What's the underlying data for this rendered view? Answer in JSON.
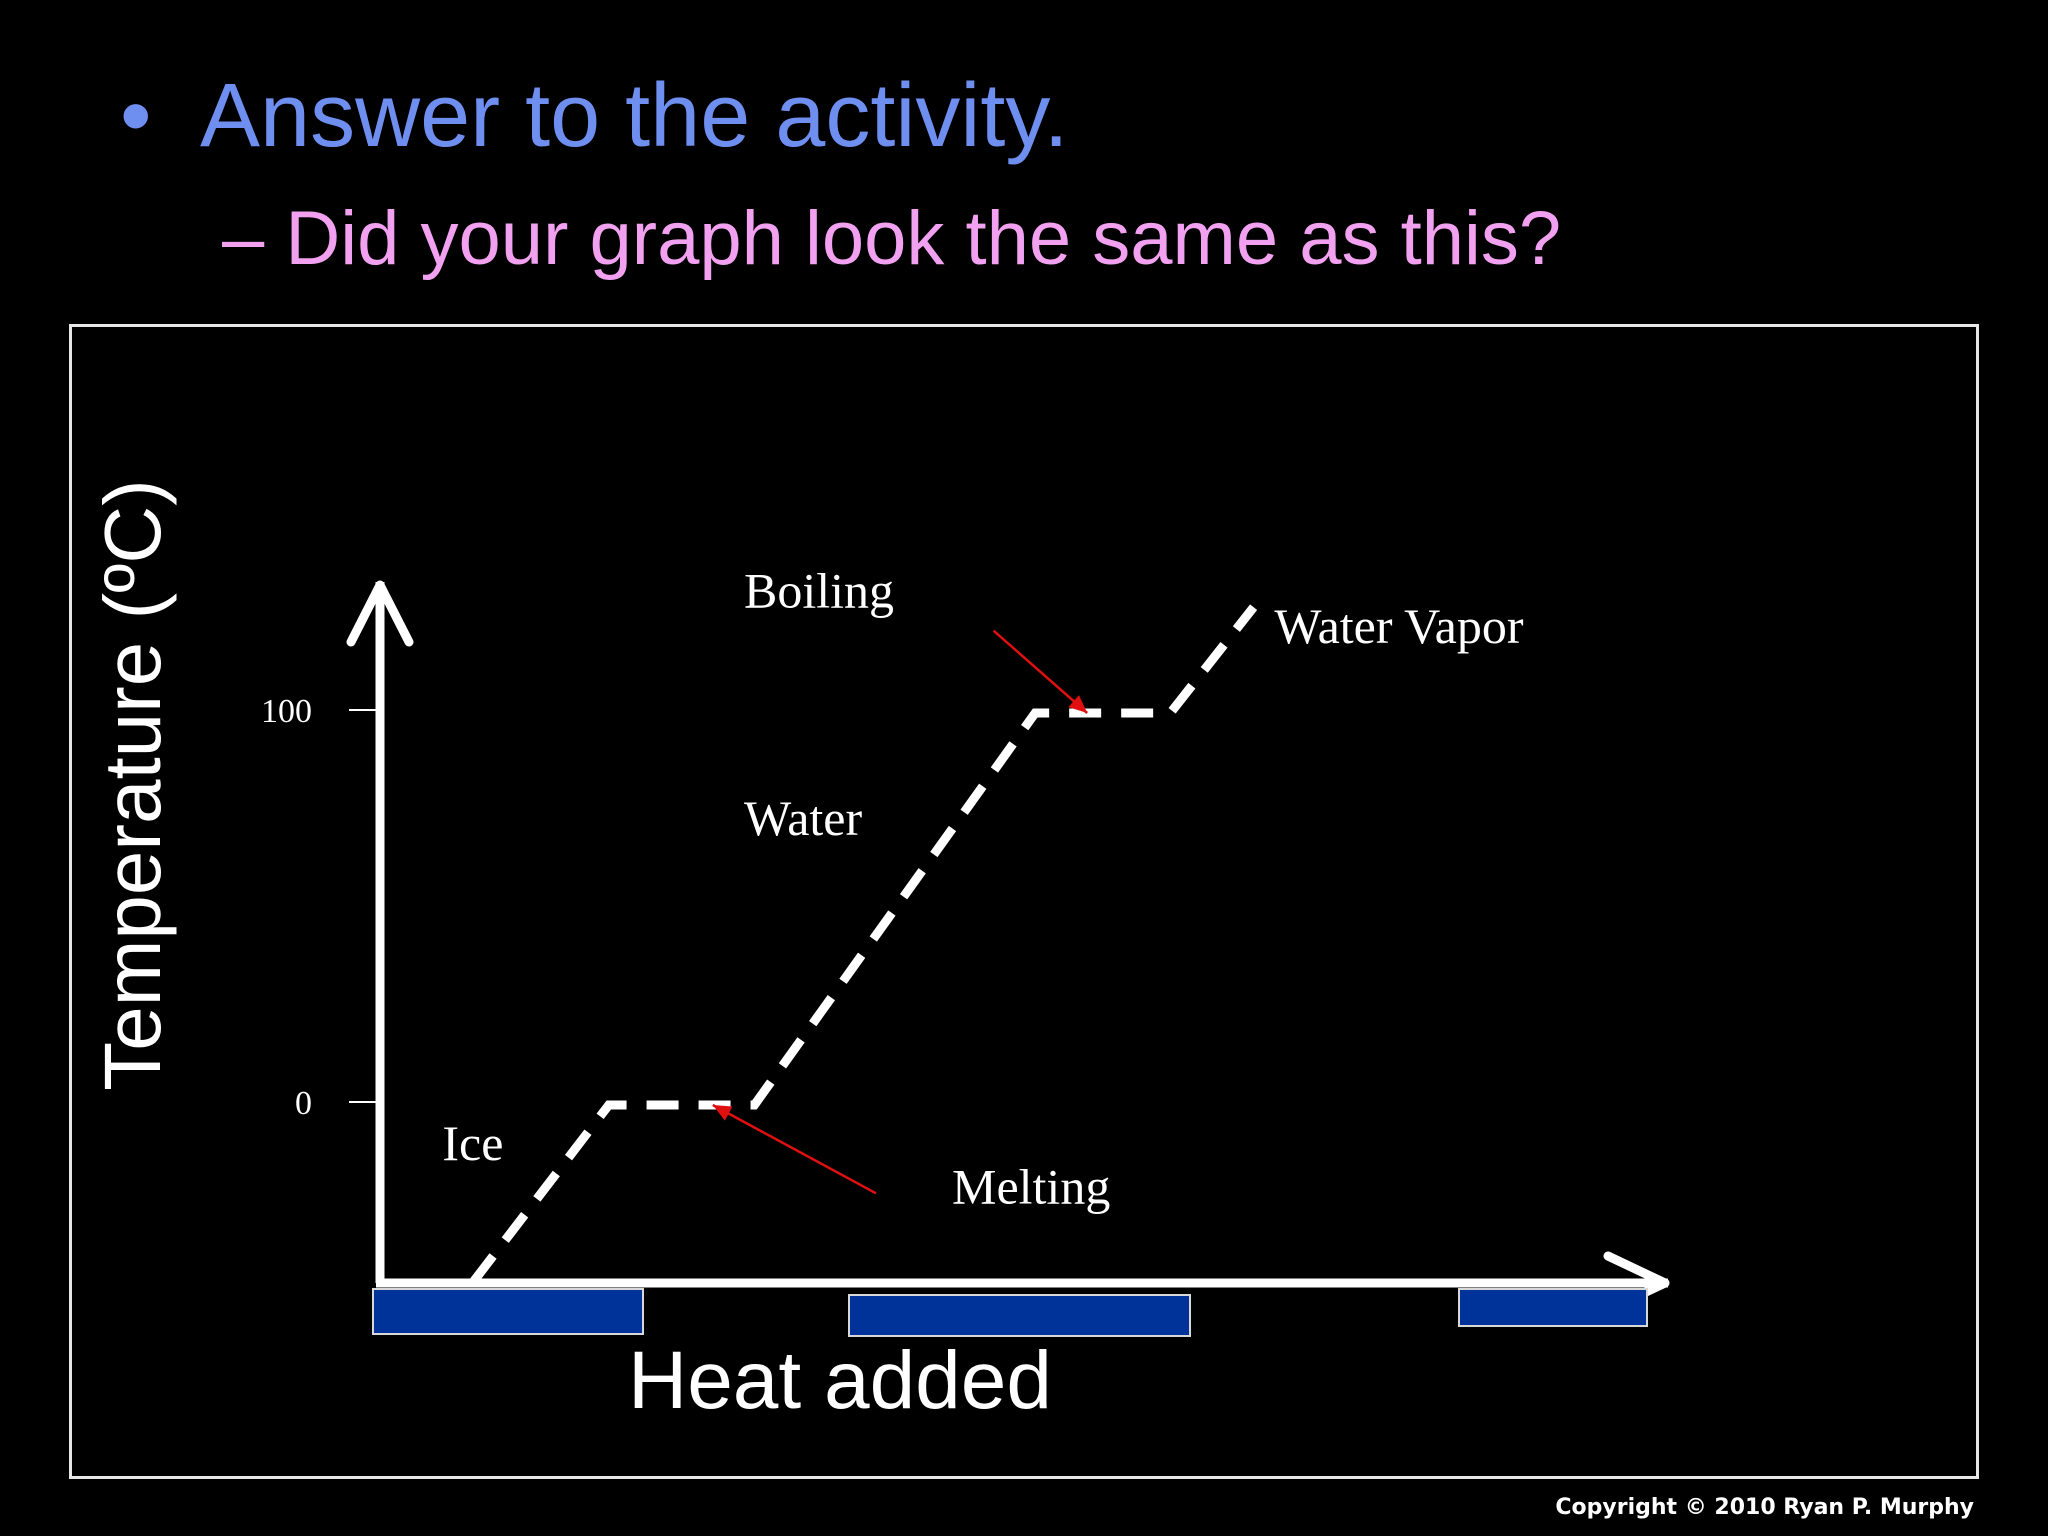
{
  "slide": {
    "bullet": "•",
    "title": "Answer to the activity.",
    "subtitle": "– Did your graph look the same as this?",
    "copyright": "Copyright © 2010 Ryan P. Murphy"
  },
  "chart_data": {
    "type": "line",
    "title": "",
    "xlabel": "Heat added",
    "ylabel": "Temperature (ºC)",
    "y_ticks": [
      "100",
      "0"
    ],
    "x_ticks": [],
    "line_style": "dashed",
    "grid": false,
    "series": [
      {
        "points": [
          {
            "x": 0.9,
            "y": -45
          },
          {
            "x": 2.2,
            "y": 0
          },
          {
            "x": 3.6,
            "y": 0
          },
          {
            "x": 6.3,
            "y": 100
          },
          {
            "x": 7.6,
            "y": 100
          },
          {
            "x": 8.4,
            "y": 127
          }
        ]
      }
    ],
    "annotations": [
      {
        "text": "Ice",
        "x": 0.6,
        "y": -10
      },
      {
        "text": "Melting",
        "x": 5.5,
        "y": -21,
        "arrow_to": {
          "x": 3.2,
          "y": 0
        }
      },
      {
        "text": "Water",
        "x": 3.5,
        "y": 73
      },
      {
        "text": "Boiling",
        "x": 3.5,
        "y": 131,
        "arrow_from": {
          "x": 5.9,
          "y": 121
        },
        "arrow_to": {
          "x": 6.8,
          "y": 100
        }
      },
      {
        "text": "Water Vapor",
        "x": 8.6,
        "y": 122
      }
    ],
    "colors": {
      "line": "#ffffff",
      "axis": "#ffffff",
      "arrow": "#e01010",
      "bar": "#003399",
      "bar_border": "#d8d8d8"
    },
    "bars_below_axis": 3
  }
}
